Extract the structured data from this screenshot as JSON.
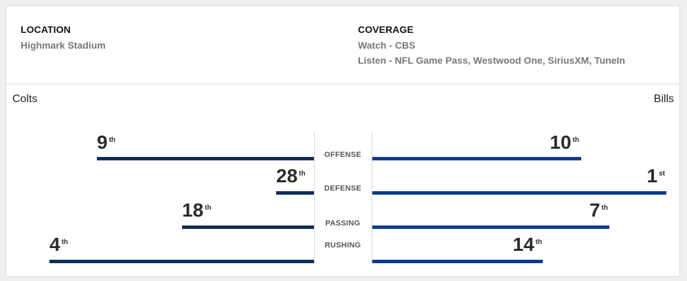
{
  "location": {
    "heading": "LOCATION",
    "value": "Highmark Stadium"
  },
  "coverage": {
    "heading": "COVERAGE",
    "watch": "Watch - CBS",
    "listen": "Listen - NFL Game Pass, Westwood One, SiriusXM, TuneIn"
  },
  "teams": {
    "away": "Colts",
    "home": "Bills"
  },
  "stats": [
    {
      "category": "OFFENSE",
      "away": {
        "rank": "9",
        "suffix": "th"
      },
      "home": {
        "rank": "10",
        "suffix": "th"
      }
    },
    {
      "category": "DEFENSE",
      "away": {
        "rank": "28",
        "suffix": "th"
      },
      "home": {
        "rank": "1",
        "suffix": "st"
      }
    },
    {
      "category": "PASSING",
      "away": {
        "rank": "18",
        "suffix": "th"
      },
      "home": {
        "rank": "7",
        "suffix": "th"
      }
    },
    {
      "category": "RUSHING",
      "away": {
        "rank": "4",
        "suffix": "th"
      },
      "home": {
        "rank": "14",
        "suffix": "th"
      }
    }
  ],
  "colors": {
    "away_bar": "#0d2c5a",
    "home_bar": "#0b3a8f"
  }
}
